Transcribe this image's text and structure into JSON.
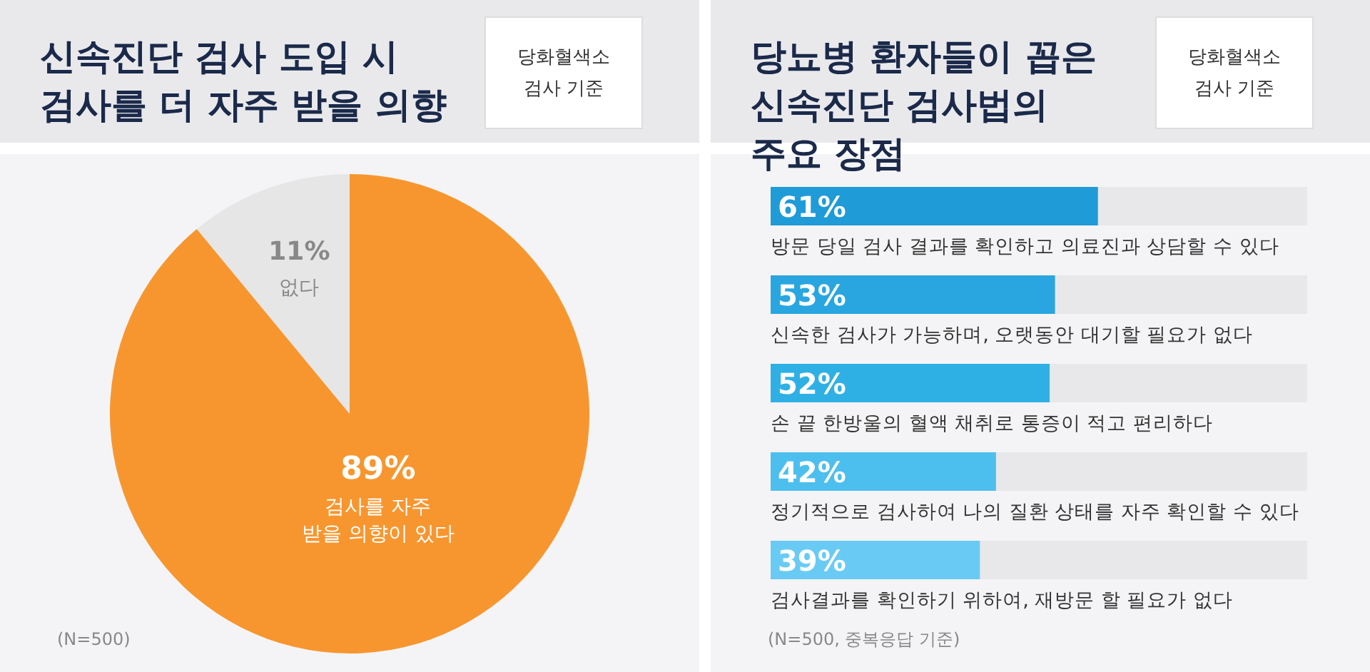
{
  "chart_data": [
    {
      "type": "pie",
      "title": "신속진단 검사 도입 시 검사를 더 자주 받을 의향",
      "subtitle": "당화혈색소 검사 기준",
      "categories": [
        "검사를 자주 받을 의향이 있다",
        "없다"
      ],
      "values": [
        89,
        11
      ],
      "colors": [
        "#f7962f",
        "#e6e6e6"
      ],
      "value_labels": [
        "89%",
        "11%"
      ],
      "annotations": [
        "(N=500)"
      ]
    },
    {
      "type": "bar",
      "orientation": "horizontal",
      "title": "당뇨병 환자들이 꼽은 신속진단 검사법의 주요 장점",
      "subtitle": "당화혈색소 검사 기준",
      "categories": [
        "방문 당일 검사 결과를 확인하고 의료진과 상담할 수 있다",
        "신속한 검사가 가능하며, 오랫동안 대기할 필요가 없다",
        "손 끝 한방울의 혈액 채취로 통증이 적고 편리하다",
        "정기적으로 검사하여 나의 질환 상태를 자주 확인할 수 있다",
        "검사결과를 확인하기 위하여, 재방문 할 필요가 없다"
      ],
      "values": [
        61,
        53,
        52,
        42,
        39
      ],
      "colors": [
        "#1f9bd7",
        "#29a6df",
        "#2fb0e5",
        "#4dbfee",
        "#69cbf4"
      ],
      "value_labels": [
        "61%",
        "53%",
        "52%",
        "42%",
        "39%"
      ],
      "xlim": [
        0,
        100
      ],
      "annotations": [
        "(N=500, 중복응답 기준)"
      ]
    }
  ]
}
